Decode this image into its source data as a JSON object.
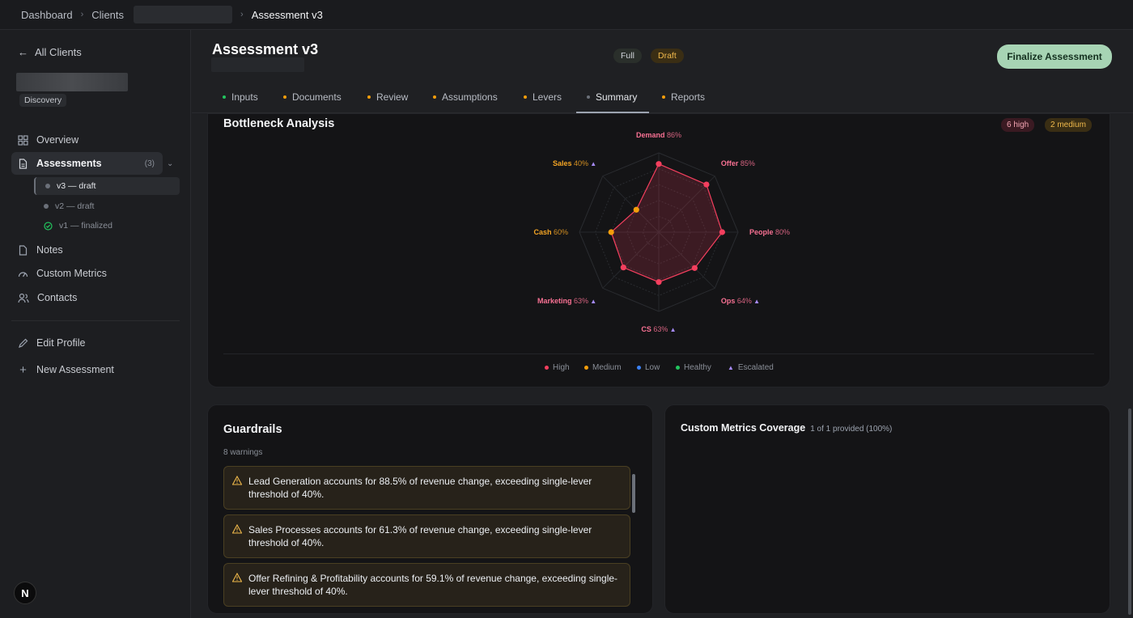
{
  "breadcrumb": {
    "items": [
      "Dashboard",
      "Clients"
    ],
    "current": "Assessment v3"
  },
  "sidebar": {
    "back_label": "All Clients",
    "client_badge": "Discovery",
    "overview": "Overview",
    "assessments": "Assessments",
    "assessments_count": "(3)",
    "versions": [
      {
        "label": "v3 — draft",
        "state": "draft"
      },
      {
        "label": "v2 — draft",
        "state": "draft"
      },
      {
        "label": "v1 — finalized",
        "state": "finalized"
      }
    ],
    "notes": "Notes",
    "custom_metrics": "Custom Metrics",
    "contacts": "Contacts",
    "edit_profile": "Edit Profile",
    "new_assessment": "New Assessment",
    "avatar_letter": "N"
  },
  "header": {
    "title": "Assessment v3",
    "pill_full": "Full",
    "pill_draft": "Draft",
    "finalize_label": "Finalize Assessment"
  },
  "tabs": [
    {
      "label": "Inputs",
      "color": "#22c55e"
    },
    {
      "label": "Documents",
      "color": "#f59e0b"
    },
    {
      "label": "Review",
      "color": "#f59e0b"
    },
    {
      "label": "Assumptions",
      "color": "#f59e0b"
    },
    {
      "label": "Levers",
      "color": "#f59e0b"
    },
    {
      "label": "Summary",
      "color": "#6b7079"
    },
    {
      "label": "Reports",
      "color": "#f59e0b"
    }
  ],
  "bottleneck": {
    "title": "Bottleneck Analysis",
    "badge_high": "6 high",
    "badge_medium": "2 medium",
    "chart_data": {
      "type": "radar",
      "axes": [
        "Demand",
        "Offer",
        "People",
        "Ops",
        "CS",
        "Marketing",
        "Cash",
        "Sales"
      ],
      "values": [
        86,
        85,
        80,
        64,
        63,
        63,
        60,
        40
      ],
      "value_labels": [
        "86%",
        "85%",
        "80%",
        "64%",
        "63%",
        "63%",
        "60%",
        "40%"
      ],
      "severity": [
        "high",
        "high",
        "high",
        "high",
        "high",
        "high",
        "medium",
        "medium"
      ],
      "escalated": [
        false,
        false,
        false,
        true,
        true,
        true,
        false,
        true
      ],
      "range": [
        0,
        100
      ]
    },
    "legend": [
      "High",
      "Medium",
      "Low",
      "Healthy",
      "Escalated"
    ],
    "colors": {
      "high": "#f43f5e",
      "medium": "#f59e0b",
      "low": "#3b82f6",
      "healthy": "#22c55e",
      "escalated": "#a78bfa"
    }
  },
  "guardrails": {
    "title": "Guardrails",
    "count_label": "8 warnings",
    "warnings": [
      "Lead Generation accounts for 88.5% of revenue change, exceeding single-lever threshold of 40%.",
      "Sales Processes accounts for 61.3% of revenue change, exceeding single-lever threshold of 40%.",
      "Offer Refining & Profitability accounts for 59.1% of revenue change, exceeding single-lever threshold of 40%."
    ]
  },
  "custom_metrics": {
    "title": "Custom Metrics Coverage",
    "subtitle": "1 of 1 provided (100%)"
  }
}
